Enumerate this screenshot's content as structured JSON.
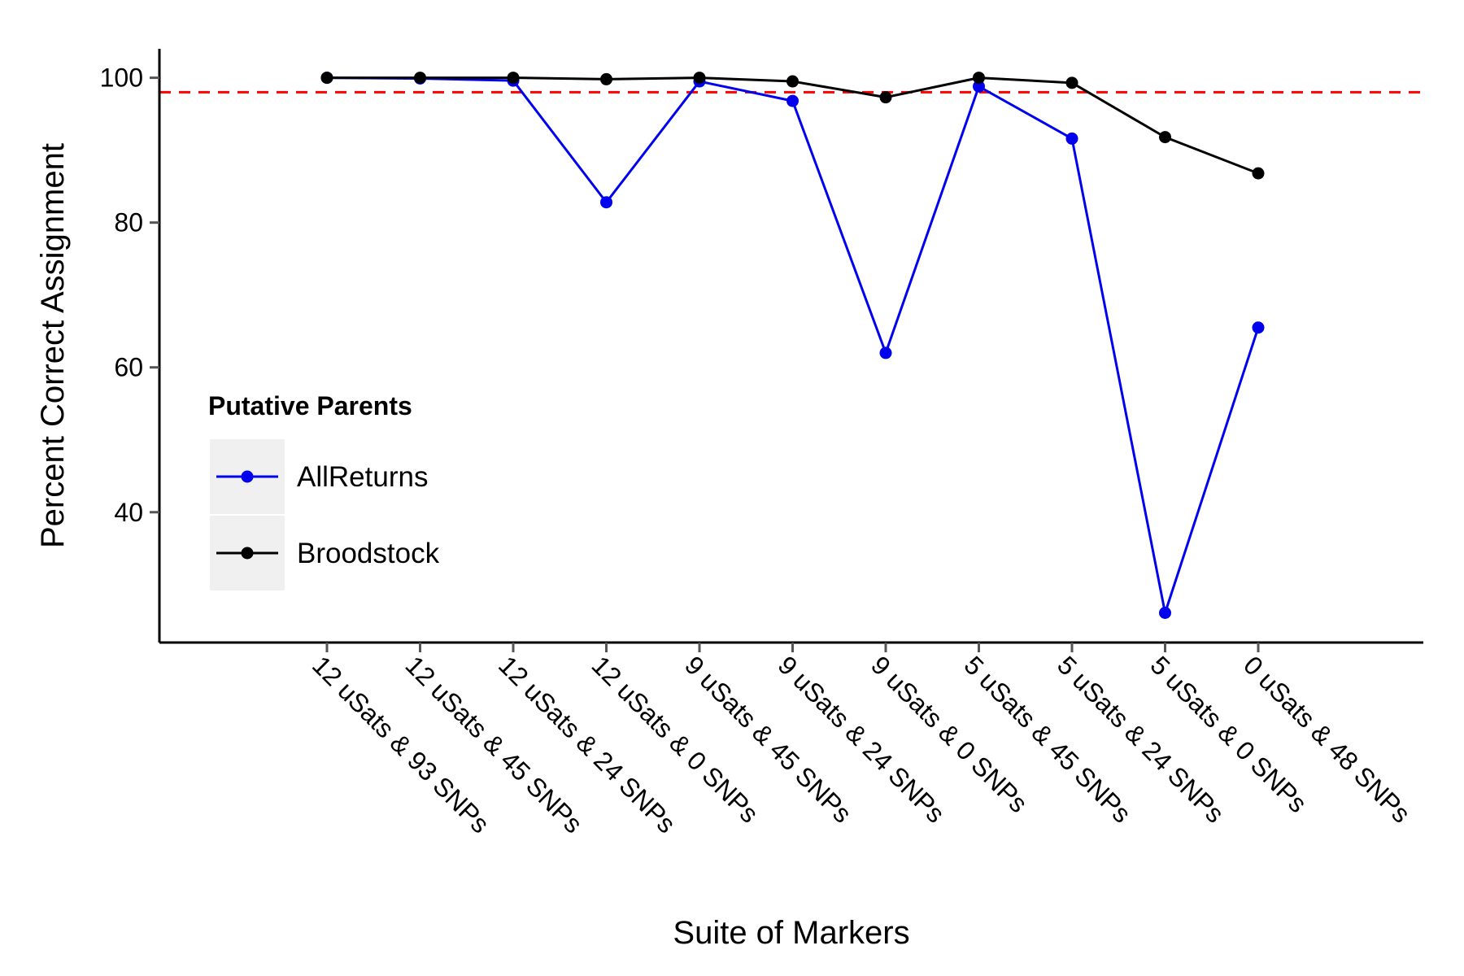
{
  "chart_data": {
    "type": "line",
    "title": "",
    "xlabel": "Suite of Markers",
    "ylabel": "Percent Correct Assignment",
    "categories": [
      "12 uSats & 93 SNPs",
      "12 uSats & 45 SNPs",
      "12 uSats & 24 SNPs",
      "12 uSats & 0 SNPs",
      "9 uSats & 45 SNPs",
      "9 uSats & 24 SNPs",
      "9 uSats & 0 SNPs",
      "5 uSats & 45 SNPs",
      "5 uSats & 24 SNPs",
      "5 uSats & 0 SNPs",
      "0 uSats & 48 SNPs"
    ],
    "ylim": [
      22,
      104
    ],
    "yticks": [
      40,
      60,
      80,
      100
    ],
    "reference_line": {
      "y": 98,
      "color": "#ff0000",
      "style": "dashed"
    },
    "legend": {
      "title": "Putative Parents",
      "placement": "left"
    },
    "series": [
      {
        "name": "AllReturns",
        "color": "#0000ee",
        "values": [
          100,
          99.9,
          99.6,
          82.8,
          99.5,
          96.8,
          62,
          98.8,
          91.6,
          26.1,
          65.5
        ]
      },
      {
        "name": "Broodstock",
        "color": "#000000",
        "values": [
          100,
          100,
          100,
          99.8,
          100,
          99.5,
          97.3,
          100,
          99.3,
          91.8,
          86.8
        ]
      }
    ]
  }
}
